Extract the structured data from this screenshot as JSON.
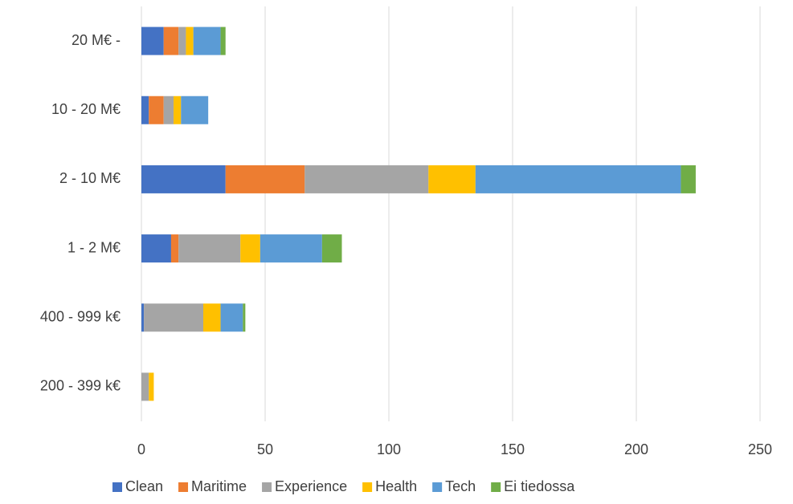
{
  "chart_data": {
    "type": "stacked-bar-horizontal",
    "categories": [
      "20 M€ -",
      "10 - 20 M€",
      "2 - 10 M€",
      "1 - 2 M€",
      "400 - 999 k€",
      "200 - 399 k€"
    ],
    "series": [
      {
        "name": "Clean",
        "color": "#4472c4",
        "values": [
          9,
          3,
          34,
          12,
          1,
          0
        ]
      },
      {
        "name": "Maritime",
        "color": "#ed7d31",
        "values": [
          6,
          6,
          32,
          3,
          0,
          0
        ]
      },
      {
        "name": "Experience",
        "color": "#a5a5a5",
        "values": [
          3,
          4,
          50,
          25,
          24,
          3
        ]
      },
      {
        "name": "Health",
        "color": "#ffc000",
        "values": [
          3,
          3,
          19,
          8,
          7,
          2
        ]
      },
      {
        "name": "Tech",
        "color": "#5b9bd5",
        "values": [
          11,
          11,
          83,
          25,
          9,
          0
        ]
      },
      {
        "name": "Ei tiedossa",
        "color": "#70ad47",
        "values": [
          2,
          0,
          6,
          8,
          1,
          0
        ]
      }
    ],
    "xlim": [
      0,
      250
    ],
    "xticks": [
      0,
      50,
      100,
      150,
      200,
      250
    ],
    "grid": true,
    "legend": "bottom"
  }
}
